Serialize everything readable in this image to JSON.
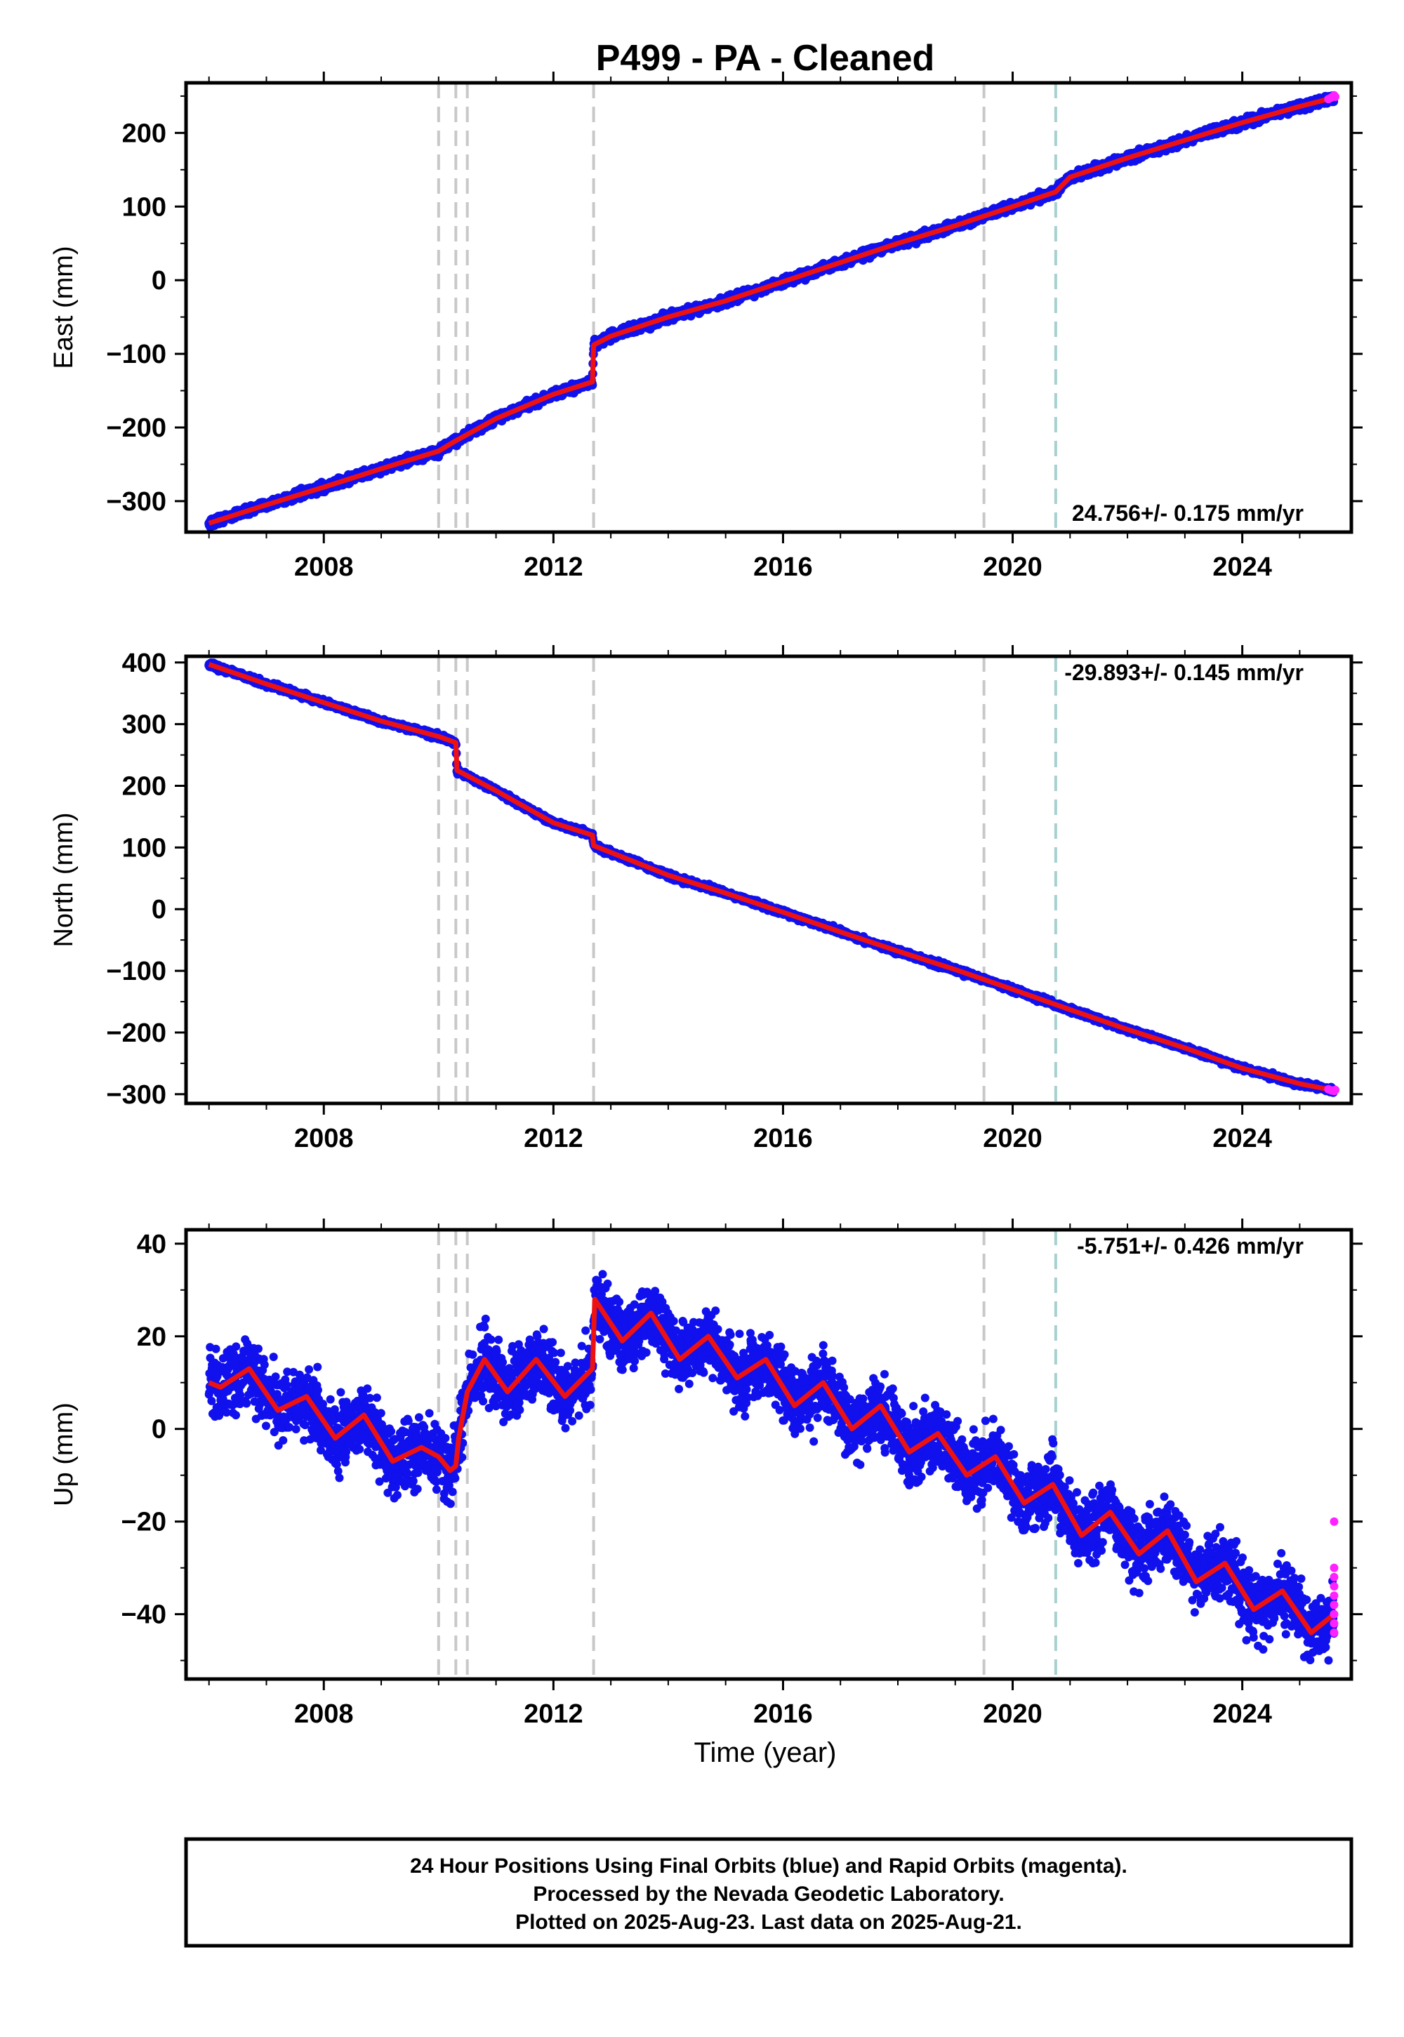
{
  "title": "P499  - PA - Cleaned",
  "colors": {
    "final_orbits": "#1111ee",
    "rapid_orbits": "#ff22ff",
    "model": "#ee1111",
    "event_line": "#c8c8c8",
    "event_line_teal": "#a8d0d0"
  },
  "event_years": [
    2010.0,
    2010.3,
    2010.5,
    2012.7,
    2019.5
  ],
  "teal_event_years": [
    2020.75
  ],
  "chart_data": [
    {
      "type": "scatter",
      "name": "east",
      "ylabel": "East (mm)",
      "xlabel": "",
      "xlim": [
        2005.6,
        2025.9
      ],
      "ylim": [
        -342,
        268
      ],
      "xticks": [
        2008,
        2012,
        2016,
        2020,
        2024
      ],
      "yticks": [
        -300,
        -200,
        -100,
        0,
        100,
        200
      ],
      "rate_label": "24.756+/- 0.175 mm/yr",
      "rate_position": "bottom-right",
      "model_points": [
        [
          2006.0,
          -330
        ],
        [
          2007.0,
          -305
        ],
        [
          2008.0,
          -281
        ],
        [
          2009.0,
          -256
        ],
        [
          2010.0,
          -232
        ],
        [
          2010.3,
          -218
        ],
        [
          2011.0,
          -188
        ],
        [
          2012.0,
          -155
        ],
        [
          2012.68,
          -138
        ],
        [
          2012.7,
          -88
        ],
        [
          2013.0,
          -76
        ],
        [
          2014.0,
          -50
        ],
        [
          2015.0,
          -28
        ],
        [
          2016.0,
          -2
        ],
        [
          2017.0,
          24
        ],
        [
          2018.0,
          50
        ],
        [
          2019.0,
          74
        ],
        [
          2020.0,
          100
        ],
        [
          2020.75,
          120
        ],
        [
          2021.0,
          140
        ],
        [
          2022.0,
          166
        ],
        [
          2023.0,
          190
        ],
        [
          2024.0,
          214
        ],
        [
          2025.0,
          236
        ],
        [
          2025.6,
          248
        ]
      ],
      "scatter_noise_mm": 4,
      "rapid_points": [
        [
          2025.5,
          246
        ],
        [
          2025.55,
          248
        ],
        [
          2025.6,
          251
        ],
        [
          2025.62,
          249
        ]
      ]
    },
    {
      "type": "scatter",
      "name": "north",
      "ylabel": "North (mm)",
      "xlabel": "",
      "xlim": [
        2005.6,
        2025.9
      ],
      "ylim": [
        -315,
        410
      ],
      "xticks": [
        2008,
        2012,
        2016,
        2020,
        2024
      ],
      "yticks": [
        -300,
        -200,
        -100,
        0,
        100,
        200,
        300,
        400
      ],
      "rate_label": "-29.893+/- 0.145 mm/yr",
      "rate_position": "top-right",
      "model_points": [
        [
          2006.0,
          397
        ],
        [
          2007.0,
          365
        ],
        [
          2008.0,
          335
        ],
        [
          2009.0,
          305
        ],
        [
          2010.0,
          280
        ],
        [
          2010.3,
          270
        ],
        [
          2010.32,
          225
        ],
        [
          2011.0,
          192
        ],
        [
          2012.0,
          140
        ],
        [
          2012.68,
          120
        ],
        [
          2012.7,
          103
        ],
        [
          2013.0,
          92
        ],
        [
          2014.0,
          55
        ],
        [
          2015.0,
          26
        ],
        [
          2016.0,
          -5
        ],
        [
          2017.0,
          -37
        ],
        [
          2018.0,
          -68
        ],
        [
          2019.0,
          -98
        ],
        [
          2020.0,
          -130
        ],
        [
          2021.0,
          -163
        ],
        [
          2022.0,
          -195
        ],
        [
          2023.0,
          -225
        ],
        [
          2024.0,
          -258
        ],
        [
          2025.0,
          -283
        ],
        [
          2025.6,
          -294
        ]
      ],
      "scatter_noise_mm": 3,
      "rapid_points": [
        [
          2025.5,
          -292
        ],
        [
          2025.55,
          -294
        ],
        [
          2025.6,
          -295
        ],
        [
          2025.62,
          -293
        ]
      ]
    },
    {
      "type": "scatter",
      "name": "up",
      "ylabel": "Up (mm)",
      "xlabel": "Time (year)",
      "xlim": [
        2005.6,
        2025.9
      ],
      "ylim": [
        -54,
        43
      ],
      "xticks": [
        2008,
        2012,
        2016,
        2020,
        2024
      ],
      "yticks": [
        -40,
        -20,
        0,
        20,
        40
      ],
      "rate_label": "-5.751+/- 0.426 mm/yr",
      "rate_position": "top-right",
      "model_points": [
        [
          2006.0,
          10
        ],
        [
          2006.2,
          9
        ],
        [
          2006.7,
          13
        ],
        [
          2007.2,
          4
        ],
        [
          2007.7,
          7
        ],
        [
          2008.2,
          -2
        ],
        [
          2008.7,
          3
        ],
        [
          2009.2,
          -7
        ],
        [
          2009.7,
          -4
        ],
        [
          2010.0,
          -6
        ],
        [
          2010.2,
          -9
        ],
        [
          2010.3,
          -8
        ],
        [
          2010.35,
          -2
        ],
        [
          2010.5,
          8
        ],
        [
          2010.8,
          15
        ],
        [
          2011.2,
          8
        ],
        [
          2011.7,
          15
        ],
        [
          2012.2,
          7
        ],
        [
          2012.68,
          13
        ],
        [
          2012.72,
          28
        ],
        [
          2013.2,
          19
        ],
        [
          2013.7,
          25
        ],
        [
          2014.2,
          15
        ],
        [
          2014.7,
          20
        ],
        [
          2015.2,
          11
        ],
        [
          2015.7,
          15
        ],
        [
          2016.2,
          5
        ],
        [
          2016.7,
          10
        ],
        [
          2017.2,
          0
        ],
        [
          2017.7,
          5
        ],
        [
          2018.2,
          -5
        ],
        [
          2018.7,
          -1
        ],
        [
          2019.2,
          -10
        ],
        [
          2019.7,
          -6
        ],
        [
          2020.2,
          -16
        ],
        [
          2020.7,
          -12
        ],
        [
          2021.2,
          -23
        ],
        [
          2021.7,
          -18
        ],
        [
          2022.2,
          -27
        ],
        [
          2022.7,
          -22
        ],
        [
          2023.2,
          -33
        ],
        [
          2023.7,
          -29
        ],
        [
          2024.2,
          -39
        ],
        [
          2024.7,
          -35
        ],
        [
          2025.2,
          -44
        ],
        [
          2025.6,
          -40
        ]
      ],
      "scatter_noise_mm": 5,
      "rapid_points": [
        [
          2025.6,
          -20
        ],
        [
          2025.6,
          -30
        ],
        [
          2025.6,
          -32
        ],
        [
          2025.6,
          -34
        ],
        [
          2025.6,
          -36
        ],
        [
          2025.6,
          -38
        ],
        [
          2025.6,
          -40
        ],
        [
          2025.6,
          -42
        ],
        [
          2025.6,
          -44
        ]
      ]
    }
  ],
  "footer": {
    "line1": "24 Hour Positions Using Final Orbits (blue) and Rapid Orbits (magenta).",
    "line2": "Processed by the Nevada Geodetic Laboratory.",
    "line3": "Plotted on 2025-Aug-23. Last data on 2025-Aug-21."
  }
}
